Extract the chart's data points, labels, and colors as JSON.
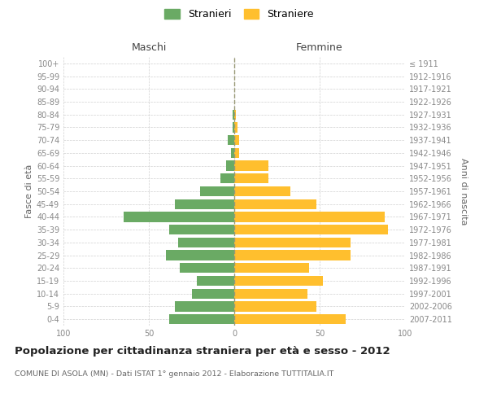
{
  "age_groups": [
    "0-4",
    "5-9",
    "10-14",
    "15-19",
    "20-24",
    "25-29",
    "30-34",
    "35-39",
    "40-44",
    "45-49",
    "50-54",
    "55-59",
    "60-64",
    "65-69",
    "70-74",
    "75-79",
    "80-84",
    "85-89",
    "90-94",
    "95-99",
    "100+"
  ],
  "birth_years": [
    "2007-2011",
    "2002-2006",
    "1997-2001",
    "1992-1996",
    "1987-1991",
    "1982-1986",
    "1977-1981",
    "1972-1976",
    "1967-1971",
    "1962-1966",
    "1957-1961",
    "1952-1956",
    "1947-1951",
    "1942-1946",
    "1937-1941",
    "1932-1936",
    "1927-1931",
    "1922-1926",
    "1917-1921",
    "1912-1916",
    "≤ 1911"
  ],
  "maschi": [
    38,
    35,
    25,
    22,
    32,
    40,
    33,
    38,
    65,
    35,
    20,
    8,
    5,
    2,
    4,
    1,
    1,
    0,
    0,
    0,
    0
  ],
  "femmine": [
    65,
    48,
    43,
    52,
    44,
    68,
    68,
    90,
    88,
    48,
    33,
    20,
    20,
    3,
    3,
    2,
    1,
    0,
    0,
    0,
    0
  ],
  "maschi_color": "#6aaa64",
  "femmine_color": "#ffbf2e",
  "bg_color": "#ffffff",
  "grid_color": "#d0d0d0",
  "zero_line_color": "#999977",
  "text_color": "#888888",
  "title": "Popolazione per cittadinanza straniera per età e sesso - 2012",
  "subtitle": "COMUNE DI ASOLA (MN) - Dati ISTAT 1° gennaio 2012 - Elaborazione TUTTITALIA.IT",
  "ylabel_left": "Fasce di età",
  "ylabel_right": "Anni di nascita",
  "header_left": "Maschi",
  "header_right": "Femmine",
  "legend_maschi": "Stranieri",
  "legend_femmine": "Straniere",
  "xlim": 100,
  "bar_height": 0.78
}
